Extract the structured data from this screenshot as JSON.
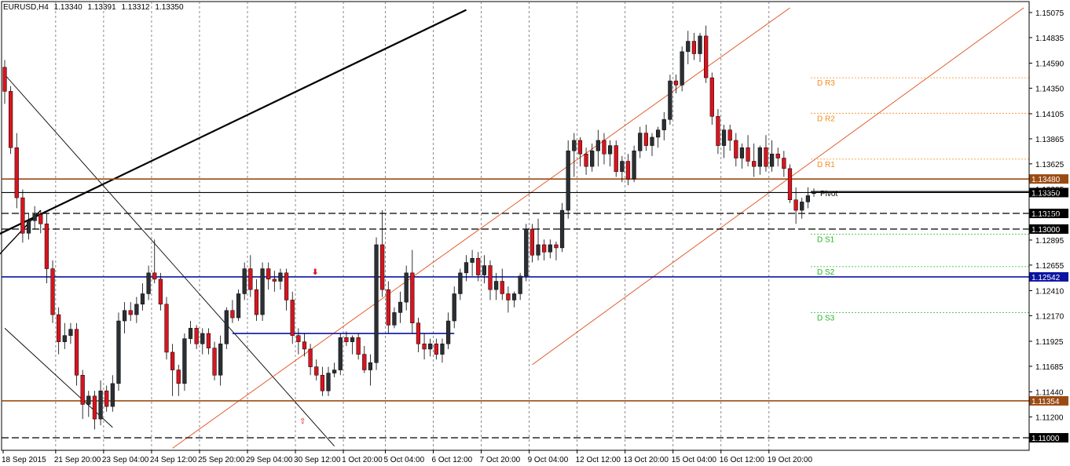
{
  "header": {
    "symbol": "EURUSD,H4",
    "open": "1.13340",
    "high": "1.13391",
    "low": "1.13312",
    "close": "1.13350"
  },
  "colors": {
    "bull": "#2b2f33",
    "bear": "#d8141e",
    "blue_line": "#0a14a0",
    "brown_line": "#9a4b14",
    "resistance": "#f08c1e",
    "support": "#28b428",
    "channel": "#e0501e",
    "grid": "#6e6e6e"
  },
  "chart_data": {
    "type": "candlestick",
    "symbol": "EURUSD",
    "timeframe": "H4",
    "ylim": [
      1.1088,
      1.1518
    ],
    "y_ticks": [
      "1.15075",
      "1.14835",
      "1.14590",
      "1.14350",
      "1.14105",
      "1.13865",
      "1.13625",
      "1.13385",
      "1.13140",
      "1.12895",
      "1.12655",
      "1.12410",
      "1.12170",
      "1.11925",
      "1.11685",
      "1.11440",
      "1.11200"
    ],
    "x_labels": [
      "18 Sep 2015",
      "21 Sep 20:00",
      "23 Sep 04:00",
      "24 Sep 12:00",
      "25 Sep 20:00",
      "29 Sep 04:00",
      "30 Sep 12:00",
      "1 Oct 20:00",
      "5 Oct 04:00",
      "6 Oct 12:00",
      "7 Oct 20:00",
      "9 Oct 04:00",
      "12 Oct 12:00",
      "13 Oct 20:00",
      "15 Oct 04:00",
      "16 Oct 12:00",
      "19 Oct 20:00"
    ],
    "candles": [
      [
        1.1455,
        1.1462,
        1.142,
        1.1432
      ],
      [
        1.1432,
        1.1437,
        1.1372,
        1.1378
      ],
      [
        1.1378,
        1.1392,
        1.132,
        1.133
      ],
      [
        1.133,
        1.1338,
        1.1287,
        1.1296
      ],
      [
        1.1296,
        1.1315,
        1.129,
        1.1308
      ],
      [
        1.1308,
        1.1322,
        1.13,
        1.1314
      ],
      [
        1.1314,
        1.1318,
        1.1296,
        1.1305
      ],
      [
        1.1305,
        1.1315,
        1.1248,
        1.1262
      ],
      [
        1.1262,
        1.127,
        1.121,
        1.1218
      ],
      [
        1.1218,
        1.1225,
        1.118,
        1.1192
      ],
      [
        1.1192,
        1.121,
        1.1185,
        1.1198
      ],
      [
        1.1198,
        1.121,
        1.119,
        1.1204
      ],
      [
        1.1204,
        1.121,
        1.115,
        1.116
      ],
      [
        1.116,
        1.1165,
        1.1118,
        1.1132
      ],
      [
        1.1132,
        1.1145,
        1.112,
        1.114
      ],
      [
        1.114,
        1.1145,
        1.1108,
        1.1118
      ],
      [
        1.1118,
        1.1155,
        1.1112,
        1.1145
      ],
      [
        1.1145,
        1.115,
        1.1125,
        1.113
      ],
      [
        1.113,
        1.116,
        1.1125,
        1.1152
      ],
      [
        1.1152,
        1.122,
        1.1145,
        1.1212
      ],
      [
        1.1212,
        1.123,
        1.12,
        1.1222
      ],
      [
        1.1222,
        1.123,
        1.1212,
        1.1218
      ],
      [
        1.1218,
        1.1235,
        1.121,
        1.1228
      ],
      [
        1.1228,
        1.1248,
        1.1222,
        1.1238
      ],
      [
        1.1238,
        1.1265,
        1.1232,
        1.1258
      ],
      [
        1.1258,
        1.129,
        1.1248,
        1.1252
      ],
      [
        1.1252,
        1.1258,
        1.1222,
        1.1228
      ],
      [
        1.1228,
        1.1235,
        1.1175,
        1.1182
      ],
      [
        1.1182,
        1.119,
        1.114,
        1.1165
      ],
      [
        1.1165,
        1.117,
        1.114,
        1.1152
      ],
      [
        1.1152,
        1.12,
        1.1145,
        1.1195
      ],
      [
        1.1195,
        1.1212,
        1.119,
        1.1205
      ],
      [
        1.1205,
        1.1208,
        1.1185,
        1.119
      ],
      [
        1.119,
        1.1205,
        1.118,
        1.12
      ],
      [
        1.12,
        1.1205,
        1.118,
        1.1186
      ],
      [
        1.1186,
        1.1192,
        1.1155,
        1.116
      ],
      [
        1.116,
        1.1198,
        1.115,
        1.119
      ],
      [
        1.119,
        1.1225,
        1.1185,
        1.1222
      ],
      [
        1.1222,
        1.1232,
        1.121,
        1.1215
      ],
      [
        1.1215,
        1.1242,
        1.1212,
        1.1238
      ],
      [
        1.1238,
        1.1268,
        1.1232,
        1.1262
      ],
      [
        1.1262,
        1.1275,
        1.1235,
        1.1242
      ],
      [
        1.1242,
        1.1252,
        1.1212,
        1.1218
      ],
      [
        1.1218,
        1.1268,
        1.1212,
        1.1262
      ],
      [
        1.1262,
        1.1268,
        1.1242,
        1.1252
      ],
      [
        1.1252,
        1.126,
        1.124,
        1.125
      ],
      [
        1.125,
        1.1262,
        1.1242,
        1.1258
      ],
      [
        1.1258,
        1.1262,
        1.1222,
        1.1232
      ],
      [
        1.1232,
        1.124,
        1.119,
        1.1198
      ],
      [
        1.1198,
        1.1205,
        1.118,
        1.1192
      ],
      [
        1.1192,
        1.12,
        1.1178,
        1.1185
      ],
      [
        1.1185,
        1.119,
        1.116,
        1.1168
      ],
      [
        1.1168,
        1.1175,
        1.1155,
        1.116
      ],
      [
        1.116,
        1.1168,
        1.114,
        1.1145
      ],
      [
        1.1145,
        1.1168,
        1.114,
        1.1162
      ],
      [
        1.1162,
        1.1172,
        1.1158,
        1.1165
      ],
      [
        1.1165,
        1.12,
        1.116,
        1.1196
      ],
      [
        1.1196,
        1.1202,
        1.1188,
        1.1192
      ],
      [
        1.1192,
        1.1198,
        1.118,
        1.1196
      ],
      [
        1.1196,
        1.12,
        1.1175,
        1.118
      ],
      [
        1.118,
        1.1188,
        1.1162,
        1.1165
      ],
      [
        1.1165,
        1.118,
        1.115,
        1.1172
      ],
      [
        1.1172,
        1.1292,
        1.1165,
        1.1285
      ],
      [
        1.1285,
        1.1318,
        1.1235,
        1.1242
      ],
      [
        1.1242,
        1.125,
        1.12,
        1.1208
      ],
      [
        1.1208,
        1.1225,
        1.1205,
        1.122
      ],
      [
        1.122,
        1.124,
        1.121,
        1.123
      ],
      [
        1.123,
        1.1265,
        1.1222,
        1.1258
      ],
      [
        1.1258,
        1.128,
        1.12,
        1.121
      ],
      [
        1.121,
        1.1215,
        1.1182,
        1.119
      ],
      [
        1.119,
        1.12,
        1.1175,
        1.1185
      ],
      [
        1.1185,
        1.1195,
        1.1178,
        1.119
      ],
      [
        1.119,
        1.1195,
        1.1175,
        1.118
      ],
      [
        1.118,
        1.1195,
        1.1172,
        1.119
      ],
      [
        1.119,
        1.122,
        1.1185,
        1.1212
      ],
      [
        1.1212,
        1.1245,
        1.1205,
        1.1238
      ],
      [
        1.1238,
        1.1262,
        1.1232,
        1.1258
      ],
      [
        1.1258,
        1.1275,
        1.125,
        1.1268
      ],
      [
        1.1268,
        1.128,
        1.1255,
        1.1272
      ],
      [
        1.1272,
        1.1278,
        1.125,
        1.1256
      ],
      [
        1.1256,
        1.1275,
        1.1248,
        1.1265
      ],
      [
        1.1265,
        1.127,
        1.1232,
        1.1242
      ],
      [
        1.1242,
        1.1258,
        1.1232,
        1.125
      ],
      [
        1.125,
        1.1262,
        1.1232,
        1.1238
      ],
      [
        1.1238,
        1.1245,
        1.122,
        1.1232
      ],
      [
        1.1232,
        1.124,
        1.1225,
        1.1238
      ],
      [
        1.1238,
        1.1258,
        1.1232,
        1.1255
      ],
      [
        1.1255,
        1.1305,
        1.125,
        1.13
      ],
      [
        1.13,
        1.1305,
        1.1268,
        1.1275
      ],
      [
        1.1275,
        1.131,
        1.127,
        1.1285
      ],
      [
        1.1285,
        1.129,
        1.127,
        1.1278
      ],
      [
        1.1278,
        1.129,
        1.1272,
        1.1285
      ],
      [
        1.1285,
        1.1288,
        1.127,
        1.1282
      ],
      [
        1.1282,
        1.1325,
        1.1278,
        1.1318
      ],
      [
        1.1318,
        1.1385,
        1.131,
        1.1375
      ],
      [
        1.1375,
        1.1392,
        1.135,
        1.1385
      ],
      [
        1.1385,
        1.1388,
        1.136,
        1.1372
      ],
      [
        1.1372,
        1.1378,
        1.1352,
        1.136
      ],
      [
        1.136,
        1.1382,
        1.1355,
        1.1375
      ],
      [
        1.1375,
        1.1395,
        1.136,
        1.1385
      ],
      [
        1.1385,
        1.1392,
        1.1362,
        1.1372
      ],
      [
        1.1372,
        1.1385,
        1.136,
        1.138
      ],
      [
        1.138,
        1.1385,
        1.135,
        1.1355
      ],
      [
        1.1355,
        1.137,
        1.1345,
        1.1365
      ],
      [
        1.1365,
        1.1372,
        1.1342,
        1.1348
      ],
      [
        1.1348,
        1.138,
        1.1345,
        1.1375
      ],
      [
        1.1375,
        1.1398,
        1.1368,
        1.1392
      ],
      [
        1.1392,
        1.14,
        1.1375,
        1.138
      ],
      [
        1.138,
        1.1392,
        1.137,
        1.1388
      ],
      [
        1.1388,
        1.1398,
        1.1378,
        1.1395
      ],
      [
        1.1395,
        1.1412,
        1.1385,
        1.1405
      ],
      [
        1.1405,
        1.1448,
        1.14,
        1.1442
      ],
      [
        1.1442,
        1.1448,
        1.143,
        1.1438
      ],
      [
        1.1438,
        1.1475,
        1.1432,
        1.147
      ],
      [
        1.147,
        1.149,
        1.1458,
        1.148
      ],
      [
        1.148,
        1.1488,
        1.1462,
        1.1468
      ],
      [
        1.1468,
        1.1488,
        1.146,
        1.1485
      ],
      [
        1.1485,
        1.1495,
        1.144,
        1.1445
      ],
      [
        1.1445,
        1.145,
        1.14,
        1.1408
      ],
      [
        1.1408,
        1.1415,
        1.1372,
        1.138
      ],
      [
        1.138,
        1.14,
        1.1368,
        1.1395
      ],
      [
        1.1395,
        1.14,
        1.1375,
        1.1385
      ],
      [
        1.1385,
        1.1392,
        1.136,
        1.1368
      ],
      [
        1.1368,
        1.1382,
        1.1358,
        1.1378
      ],
      [
        1.1378,
        1.139,
        1.136,
        1.1365
      ],
      [
        1.1365,
        1.1382,
        1.135,
        1.136
      ],
      [
        1.136,
        1.138,
        1.1352,
        1.1378
      ],
      [
        1.1378,
        1.139,
        1.1355,
        1.136
      ],
      [
        1.136,
        1.1385,
        1.1355,
        1.1372
      ],
      [
        1.1372,
        1.1378,
        1.136,
        1.1368
      ],
      [
        1.1368,
        1.1375,
        1.135,
        1.1358
      ],
      [
        1.1358,
        1.1362,
        1.1325,
        1.1328
      ],
      [
        1.1328,
        1.134,
        1.1305,
        1.1318
      ],
      [
        1.1318,
        1.133,
        1.131,
        1.1326
      ],
      [
        1.1326,
        1.134,
        1.132,
        1.1332
      ],
      [
        1.1334,
        1.1339,
        1.1331,
        1.1335
      ]
    ],
    "horizontal_levels": [
      {
        "price": 1.1348,
        "label": "1.13480",
        "style": "solid",
        "color": "#9a4b14"
      },
      {
        "price": 1.1335,
        "label": "1.13350",
        "style": "current",
        "color": "#000000"
      },
      {
        "price": 1.1315,
        "label": "1.13150",
        "style": "dashed",
        "color": "#000000"
      },
      {
        "price": 1.13,
        "label": "1.13000",
        "style": "dashed",
        "color": "#000000"
      },
      {
        "price": 1.12542,
        "label": "1.12542",
        "style": "solid",
        "color": "#0a14a0"
      },
      {
        "price": 1.11354,
        "label": "1.11354",
        "style": "solid",
        "color": "#9a4b14"
      },
      {
        "price": 1.11,
        "label": "1.11000",
        "style": "dashed",
        "color": "#000000"
      }
    ],
    "pivots": [
      {
        "name": "D R3",
        "price": 1.1445,
        "kind": "resistance"
      },
      {
        "name": "D R2",
        "price": 1.1411,
        "kind": "resistance"
      },
      {
        "name": "D R1",
        "price": 1.1367,
        "kind": "resistance"
      },
      {
        "name": "Pivot",
        "price": 1.1334,
        "kind": "pivot"
      },
      {
        "name": "D S1",
        "price": 1.1295,
        "kind": "support"
      },
      {
        "name": "D S2",
        "price": 1.1264,
        "kind": "support"
      },
      {
        "name": "D S3",
        "price": 1.122,
        "kind": "support"
      }
    ]
  }
}
